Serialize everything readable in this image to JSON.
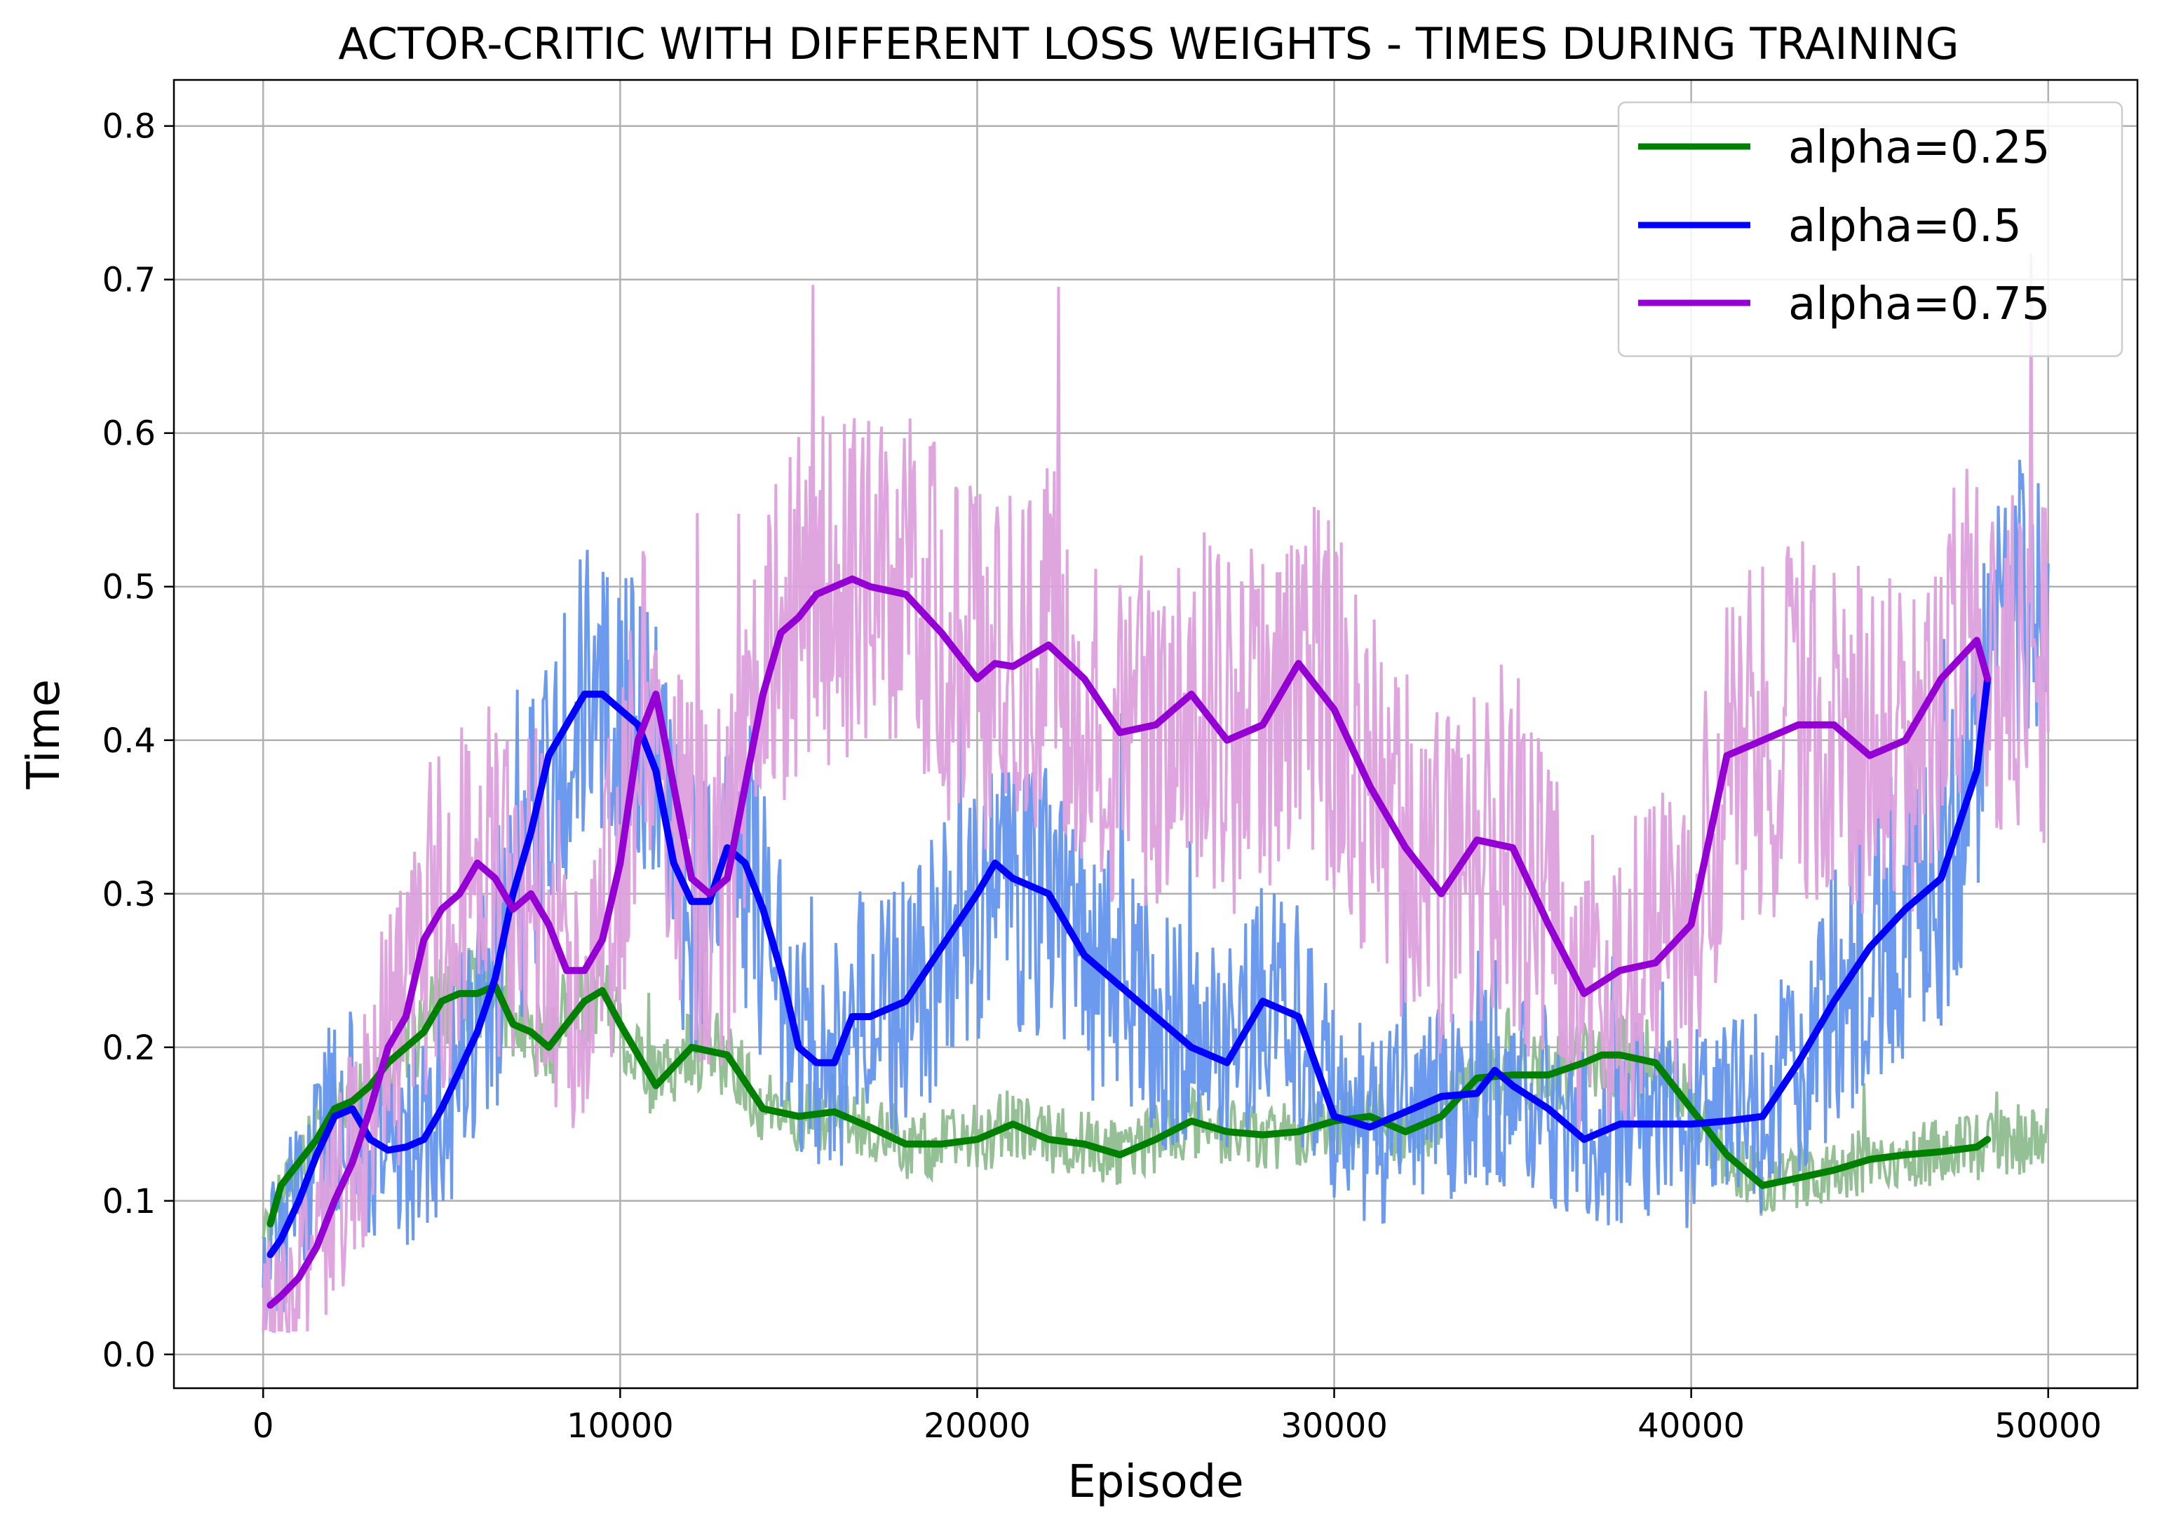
{
  "chart_data": {
    "type": "line",
    "title": "ACTOR-CRITIC WITH DIFFERENT LOSS WEIGHTS - TIMES DURING TRAINING",
    "xlabel": "Episode",
    "ylabel": "Time",
    "xlim": [
      -2500,
      52500
    ],
    "ylim": [
      -0.022,
      0.83
    ],
    "xticks": [
      0,
      10000,
      20000,
      30000,
      40000,
      50000
    ],
    "yticks": [
      0.0,
      0.1,
      0.2,
      0.3,
      0.4,
      0.5,
      0.6,
      0.7,
      0.8
    ],
    "xtick_labels": [
      "0",
      "10000",
      "20000",
      "30000",
      "40000",
      "50000"
    ],
    "ytick_labels": [
      "0.0",
      "0.1",
      "0.2",
      "0.3",
      "0.4",
      "0.5",
      "0.6",
      "0.7",
      "0.8"
    ],
    "grid": true,
    "legend": {
      "position": "top-right",
      "entries": [
        "alpha=0.25",
        "alpha=0.5",
        "alpha=0.75"
      ]
    },
    "series": [
      {
        "name": "alpha=0.25",
        "color": "#008000",
        "raw_color": "#8fbc8f",
        "x": [
          200,
          500,
          1000,
          1500,
          2000,
          2500,
          3000,
          3500,
          4000,
          4500,
          5000,
          5500,
          6000,
          6500,
          7000,
          7500,
          8000,
          8500,
          9000,
          9500,
          10000,
          11000,
          12000,
          13000,
          14000,
          15000,
          16000,
          17000,
          18000,
          19000,
          20000,
          21000,
          22000,
          23000,
          24000,
          25000,
          26000,
          27000,
          28000,
          29000,
          30000,
          31000,
          32000,
          33000,
          34000,
          35000,
          36000,
          37000,
          37500,
          38000,
          39000,
          40000,
          41000,
          42000,
          43000,
          44000,
          45000,
          46000,
          47000,
          48000,
          48300
        ],
        "y": [
          0.085,
          0.11,
          0.125,
          0.14,
          0.16,
          0.165,
          0.175,
          0.19,
          0.2,
          0.21,
          0.23,
          0.235,
          0.235,
          0.24,
          0.215,
          0.21,
          0.2,
          0.215,
          0.23,
          0.237,
          0.215,
          0.175,
          0.2,
          0.195,
          0.16,
          0.155,
          0.158,
          0.148,
          0.137,
          0.137,
          0.14,
          0.15,
          0.14,
          0.137,
          0.13,
          0.14,
          0.152,
          0.145,
          0.143,
          0.145,
          0.152,
          0.155,
          0.145,
          0.155,
          0.18,
          0.182,
          0.182,
          0.19,
          0.195,
          0.195,
          0.19,
          0.16,
          0.13,
          0.11,
          0.115,
          0.12,
          0.127,
          0.13,
          0.132,
          0.135,
          0.14
        ]
      },
      {
        "name": "alpha=0.5",
        "color": "#0000ff",
        "raw_color": "#6495ed",
        "x": [
          200,
          500,
          1000,
          1500,
          2000,
          2500,
          3000,
          3500,
          4000,
          4500,
          5000,
          5500,
          6000,
          6500,
          7000,
          7500,
          8000,
          8500,
          9000,
          9500,
          10000,
          10500,
          11000,
          11500,
          12000,
          12500,
          13000,
          13500,
          14000,
          14500,
          15000,
          15500,
          16000,
          16500,
          17000,
          18000,
          19000,
          20000,
          20500,
          21000,
          22000,
          23000,
          24000,
          25000,
          26000,
          27000,
          28000,
          29000,
          30000,
          31000,
          32000,
          33000,
          34000,
          34500,
          35000,
          36000,
          37000,
          38000,
          39000,
          40000,
          41000,
          42000,
          43000,
          44000,
          45000,
          46000,
          47000,
          48000,
          48300
        ],
        "y": [
          0.065,
          0.075,
          0.1,
          0.13,
          0.155,
          0.16,
          0.14,
          0.133,
          0.135,
          0.14,
          0.16,
          0.185,
          0.21,
          0.245,
          0.3,
          0.34,
          0.39,
          0.41,
          0.43,
          0.43,
          0.42,
          0.41,
          0.38,
          0.32,
          0.295,
          0.295,
          0.33,
          0.32,
          0.29,
          0.25,
          0.2,
          0.19,
          0.19,
          0.22,
          0.22,
          0.23,
          0.265,
          0.3,
          0.32,
          0.31,
          0.3,
          0.26,
          0.24,
          0.22,
          0.2,
          0.19,
          0.23,
          0.22,
          0.155,
          0.148,
          0.158,
          0.168,
          0.17,
          0.185,
          0.175,
          0.16,
          0.14,
          0.15,
          0.15,
          0.15,
          0.152,
          0.155,
          0.19,
          0.23,
          0.265,
          0.29,
          0.31,
          0.38,
          0.44
        ]
      },
      {
        "name": "alpha=0.75",
        "color": "#9400d3",
        "raw_color": "#dda0dd",
        "x": [
          200,
          500,
          1000,
          1500,
          2000,
          2500,
          3000,
          3500,
          4000,
          4500,
          5000,
          5500,
          6000,
          6500,
          7000,
          7500,
          8000,
          8500,
          9000,
          9500,
          10000,
          10500,
          11000,
          11500,
          12000,
          12500,
          13000,
          13500,
          14000,
          14500,
          15000,
          15500,
          16000,
          16500,
          17000,
          18000,
          19000,
          20000,
          20500,
          21000,
          22000,
          23000,
          24000,
          25000,
          26000,
          27000,
          28000,
          29000,
          30000,
          31000,
          32000,
          33000,
          34000,
          35000,
          36000,
          37000,
          38000,
          39000,
          40000,
          41000,
          42000,
          43000,
          44000,
          45000,
          46000,
          47000,
          48000,
          48300
        ],
        "y": [
          0.032,
          0.038,
          0.05,
          0.07,
          0.1,
          0.125,
          0.16,
          0.2,
          0.22,
          0.27,
          0.29,
          0.3,
          0.32,
          0.31,
          0.29,
          0.3,
          0.28,
          0.25,
          0.25,
          0.27,
          0.32,
          0.4,
          0.43,
          0.37,
          0.31,
          0.3,
          0.31,
          0.37,
          0.43,
          0.47,
          0.48,
          0.495,
          0.5,
          0.505,
          0.5,
          0.495,
          0.47,
          0.44,
          0.45,
          0.448,
          0.462,
          0.44,
          0.405,
          0.41,
          0.43,
          0.4,
          0.41,
          0.45,
          0.42,
          0.37,
          0.33,
          0.3,
          0.335,
          0.33,
          0.28,
          0.235,
          0.25,
          0.255,
          0.28,
          0.39,
          0.4,
          0.41,
          0.41,
          0.39,
          0.4,
          0.44,
          0.465,
          0.44
        ]
      }
    ]
  }
}
